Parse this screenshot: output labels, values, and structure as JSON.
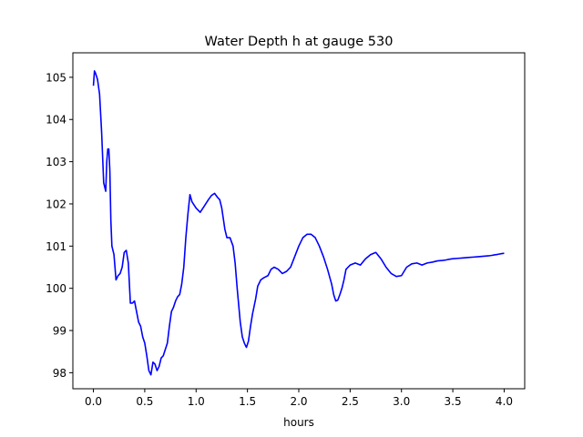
{
  "chart_data": {
    "type": "line",
    "title": "Water Depth h at gauge 530",
    "xlabel": "hours",
    "ylabel": "",
    "xlim": [
      -0.2,
      4.2
    ],
    "ylim": [
      97.62,
      105.58
    ],
    "xticks": [
      0.0,
      0.5,
      1.0,
      1.5,
      2.0,
      2.5,
      3.0,
      3.5,
      4.0
    ],
    "xtick_labels": [
      "0.0",
      "0.5",
      "1.0",
      "1.5",
      "2.0",
      "2.5",
      "3.0",
      "3.5",
      "4.0"
    ],
    "yticks": [
      98,
      99,
      100,
      101,
      102,
      103,
      104,
      105
    ],
    "ytick_labels": [
      "98",
      "99",
      "100",
      "101",
      "102",
      "103",
      "104",
      "105"
    ],
    "grid": false,
    "legend": "none",
    "series": [
      {
        "color": "#0000ff",
        "x": [
          0.0,
          0.01,
          0.02,
          0.04,
          0.06,
          0.08,
          0.1,
          0.12,
          0.13,
          0.14,
          0.15,
          0.16,
          0.17,
          0.18,
          0.2,
          0.22,
          0.24,
          0.26,
          0.28,
          0.3,
          0.32,
          0.34,
          0.36,
          0.38,
          0.4,
          0.42,
          0.44,
          0.46,
          0.48,
          0.5,
          0.52,
          0.54,
          0.56,
          0.58,
          0.6,
          0.62,
          0.64,
          0.66,
          0.68,
          0.7,
          0.72,
          0.74,
          0.76,
          0.78,
          0.8,
          0.82,
          0.84,
          0.86,
          0.88,
          0.9,
          0.92,
          0.94,
          0.96,
          1.0,
          1.04,
          1.08,
          1.12,
          1.15,
          1.18,
          1.21,
          1.23,
          1.25,
          1.28,
          1.3,
          1.33,
          1.36,
          1.38,
          1.4,
          1.43,
          1.45,
          1.47,
          1.49,
          1.51,
          1.53,
          1.55,
          1.58,
          1.6,
          1.63,
          1.66,
          1.7,
          1.73,
          1.76,
          1.8,
          1.84,
          1.88,
          1.92,
          1.96,
          2.0,
          2.04,
          2.08,
          2.12,
          2.16,
          2.2,
          2.24,
          2.28,
          2.32,
          2.34,
          2.36,
          2.38,
          2.4,
          2.42,
          2.44,
          2.46,
          2.5,
          2.55,
          2.6,
          2.65,
          2.7,
          2.75,
          2.8,
          2.85,
          2.9,
          2.95,
          3.0,
          3.05,
          3.1,
          3.15,
          3.2,
          3.25,
          3.3,
          3.35,
          3.4,
          3.43,
          3.45,
          3.47,
          3.5,
          3.55,
          3.6,
          3.65,
          3.7,
          3.75,
          3.8,
          3.85,
          3.88,
          3.9,
          3.93,
          3.95,
          3.97,
          4.0
        ],
        "y": [
          104.8,
          105.15,
          105.1,
          104.95,
          104.6,
          103.7,
          102.5,
          102.3,
          103.0,
          103.3,
          103.3,
          102.8,
          101.6,
          101.0,
          100.8,
          100.2,
          100.3,
          100.35,
          100.5,
          100.85,
          100.9,
          100.6,
          99.65,
          99.65,
          99.7,
          99.45,
          99.2,
          99.1,
          98.85,
          98.7,
          98.4,
          98.05,
          97.95,
          98.25,
          98.2,
          98.05,
          98.15,
          98.35,
          98.4,
          98.55,
          98.7,
          99.1,
          99.45,
          99.55,
          99.7,
          99.8,
          99.85,
          100.1,
          100.5,
          101.2,
          101.75,
          102.22,
          102.05,
          101.9,
          101.8,
          101.95,
          102.1,
          102.2,
          102.25,
          102.15,
          102.1,
          101.9,
          101.4,
          101.2,
          101.2,
          101.0,
          100.6,
          100.0,
          99.2,
          98.85,
          98.7,
          98.6,
          98.75,
          99.1,
          99.4,
          99.75,
          100.05,
          100.2,
          100.25,
          100.3,
          100.45,
          100.5,
          100.45,
          100.35,
          100.4,
          100.5,
          100.75,
          101.0,
          101.2,
          101.28,
          101.28,
          101.2,
          101.0,
          100.75,
          100.45,
          100.1,
          99.85,
          99.7,
          99.72,
          99.85,
          100.0,
          100.2,
          100.45,
          100.55,
          100.6,
          100.55,
          100.7,
          100.8,
          100.85,
          100.7,
          100.5,
          100.35,
          100.28,
          100.3,
          100.5,
          100.58,
          100.6,
          100.55,
          100.6,
          100.62,
          100.65,
          100.66,
          100.67,
          100.68,
          100.69,
          100.7,
          100.71,
          100.72,
          100.73,
          100.74,
          100.75,
          100.76,
          100.77,
          100.78,
          100.79,
          100.8,
          100.81,
          100.82,
          100.83
        ]
      }
    ]
  }
}
